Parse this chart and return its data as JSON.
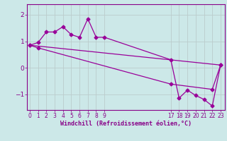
{
  "background_color": "#cce8e8",
  "line_color": "#990099",
  "grid_color": "#bbcccc",
  "xlabel": "Windchill (Refroidissement éolien,°C)",
  "tick_color": "#880088",
  "yticks": [
    -1,
    0,
    1,
    2
  ],
  "xticks": [
    0,
    1,
    2,
    3,
    4,
    5,
    6,
    7,
    8,
    9,
    17,
    18,
    19,
    20,
    21,
    22,
    23
  ],
  "xlim": [
    -0.3,
    23.5
  ],
  "ylim": [
    -1.6,
    2.4
  ],
  "line1_x": [
    0,
    1,
    2,
    3,
    4,
    5,
    6,
    7,
    8,
    9,
    17,
    18,
    19,
    20,
    21,
    22,
    23
  ],
  "line1_y": [
    0.85,
    0.95,
    1.35,
    1.35,
    1.55,
    1.25,
    1.15,
    1.85,
    1.15,
    1.15,
    0.3,
    -1.15,
    -0.85,
    -1.05,
    -1.2,
    -1.45,
    0.1
  ],
  "line2_x": [
    0,
    1,
    17,
    22,
    23
  ],
  "line2_y": [
    0.85,
    0.75,
    -0.62,
    -0.82,
    0.1
  ],
  "line3_x": [
    0,
    23
  ],
  "line3_y": [
    0.85,
    0.1
  ],
  "figsize": [
    3.2,
    2.0
  ],
  "dpi": 100
}
